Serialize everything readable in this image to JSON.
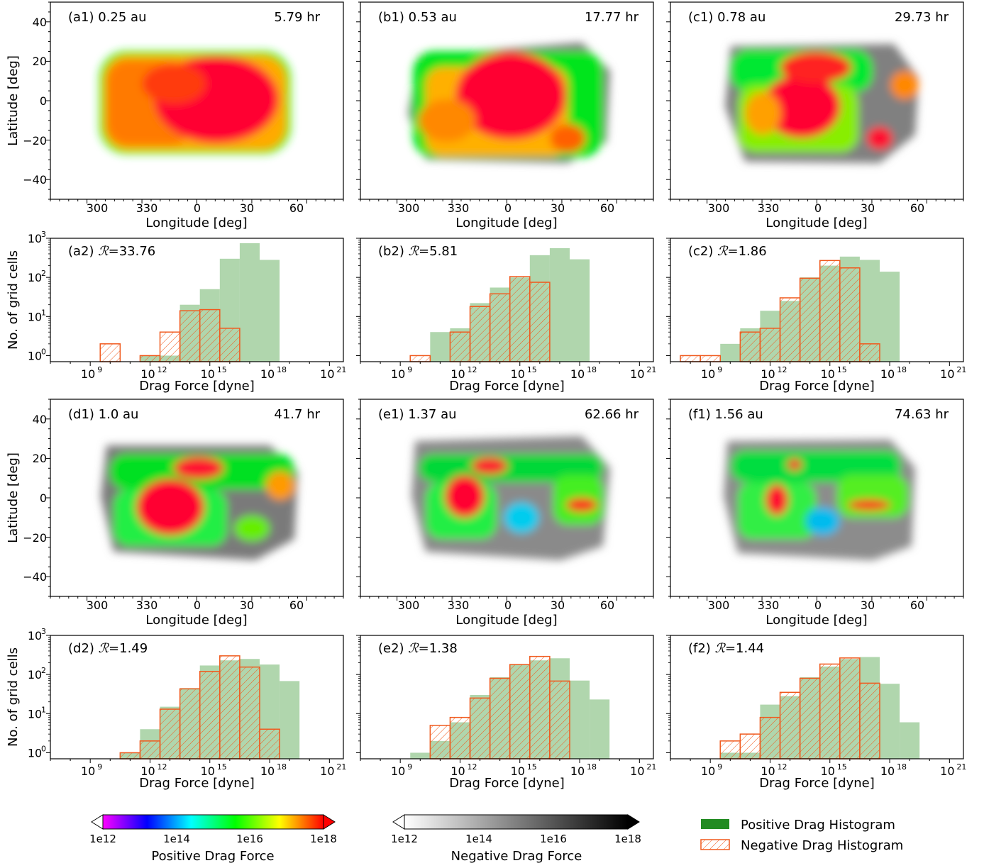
{
  "map_xlabel": "Longitude [deg]",
  "map_ylabel": "Latitude [deg]",
  "hist_xlabel": "Drag Force [dyne]",
  "hist_ylabel": "No. of grid cells",
  "map_xticks": [
    "300",
    "330",
    "0",
    "30",
    "60"
  ],
  "map_yticks": [
    "40",
    "20",
    "0",
    "−20",
    "−40"
  ],
  "hist_xticks": [
    {
      "base": "10",
      "exp": "9"
    },
    {
      "base": "10",
      "exp": "12"
    },
    {
      "base": "10",
      "exp": "15"
    },
    {
      "base": "10",
      "exp": "18"
    },
    {
      "base": "10",
      "exp": "21"
    }
  ],
  "hist_yticks": [
    {
      "base": "10",
      "exp": "0"
    },
    {
      "base": "10",
      "exp": "1"
    },
    {
      "base": "10",
      "exp": "2"
    },
    {
      "base": "10",
      "exp": "3"
    }
  ],
  "colors": {
    "positive_hist": "#9ccc98",
    "positive_legend": "#228b22",
    "negative_hist": "#f05a1e"
  },
  "colorbars": [
    {
      "label": "Positive Drag Force",
      "ticks": [
        "1e12",
        "1e14",
        "1e16",
        "1e18"
      ],
      "colormap": "gist_rainbow_r"
    },
    {
      "label": "Negative Drag Force",
      "ticks": [
        "1e12",
        "1e14",
        "1e16",
        "1e18"
      ],
      "colormap": "gray_r"
    }
  ],
  "legend": {
    "positive": "Positive Drag Histogram",
    "negative": "Negative Drag Histogram"
  },
  "chart_data": [
    {
      "type": "heatmap",
      "panel": "a1",
      "label": "(a1) 0.25 au",
      "time": "5.79 hr",
      "xlabel": "Longitude [deg]",
      "ylabel": "Latitude [deg]",
      "xlim": [
        -80,
        80
      ],
      "ylim": [
        -50,
        50
      ]
    },
    {
      "type": "heatmap",
      "panel": "b1",
      "label": "(b1) 0.53 au",
      "time": "17.77 hr",
      "xlabel": "Longitude [deg]",
      "ylabel": "",
      "xlim": [
        -80,
        80
      ],
      "ylim": [
        -50,
        50
      ]
    },
    {
      "type": "heatmap",
      "panel": "c1",
      "label": "(c1) 0.78 au",
      "time": "29.73 hr",
      "xlabel": "Longitude [deg]",
      "ylabel": "",
      "xlim": [
        -80,
        80
      ],
      "ylim": [
        -50,
        50
      ]
    },
    {
      "type": "bar",
      "panel": "a2",
      "label": "(a2) ",
      "R": "33.76",
      "scale": "log",
      "bin_edges_log10": [
        7.5,
        8.5,
        9.5,
        10.5,
        11.5,
        12.5,
        13.5,
        14.5,
        15.5,
        16.5,
        17.5,
        18.5,
        19.5,
        20.5
      ],
      "series": [
        {
          "name": "Positive Drag Histogram",
          "values": [
            0,
            0,
            0,
            0,
            1,
            1,
            20,
            50,
            300,
            750,
            280,
            0,
            0
          ]
        },
        {
          "name": "Negative Drag Histogram",
          "values": [
            0,
            0,
            2,
            0,
            1,
            4,
            14,
            15,
            5,
            0,
            0,
            0,
            0
          ]
        }
      ],
      "xlabel": "Drag Force [dyne]",
      "ylabel": "No. of grid cells",
      "ylim": [
        0.7,
        1000
      ]
    },
    {
      "type": "bar",
      "panel": "b2",
      "label": "(b2) ",
      "R": "5.81",
      "scale": "log",
      "bin_edges_log10": [
        7.5,
        8.5,
        9.5,
        10.5,
        11.5,
        12.5,
        13.5,
        14.5,
        15.5,
        16.5,
        17.5,
        18.5,
        19.5,
        20.5
      ],
      "series": [
        {
          "name": "Positive Drag Histogram",
          "values": [
            0,
            0,
            0,
            4,
            5,
            22,
            55,
            100,
            370,
            560,
            290,
            0,
            0
          ]
        },
        {
          "name": "Negative Drag Histogram",
          "values": [
            0,
            0,
            1,
            0,
            4,
            18,
            38,
            105,
            75,
            0,
            0,
            0,
            0
          ]
        }
      ],
      "xlabel": "Drag Force [dyne]",
      "ylabel": "",
      "ylim": [
        0.7,
        1000
      ]
    },
    {
      "type": "bar",
      "panel": "c2",
      "label": "(c2) ",
      "R": "1.86",
      "scale": "log",
      "bin_edges_log10": [
        7.5,
        8.5,
        9.5,
        10.5,
        11.5,
        12.5,
        13.5,
        14.5,
        15.5,
        16.5,
        17.5,
        18.5,
        19.5,
        20.5
      ],
      "series": [
        {
          "name": "Positive Drag Histogram",
          "values": [
            0,
            0,
            2,
            5,
            14,
            25,
            100,
            200,
            340,
            280,
            140,
            0,
            0
          ]
        },
        {
          "name": "Negative Drag Histogram",
          "values": [
            1,
            1,
            0,
            4,
            5,
            30,
            95,
            270,
            175,
            2,
            0,
            0,
            0
          ]
        }
      ],
      "xlabel": "Drag Force [dyne]",
      "ylabel": "",
      "ylim": [
        0.7,
        1000
      ]
    },
    {
      "type": "heatmap",
      "panel": "d1",
      "label": "(d1) 1.0 au",
      "time": "41.7 hr",
      "xlabel": "Longitude [deg]",
      "ylabel": "Latitude [deg]",
      "xlim": [
        -80,
        80
      ],
      "ylim": [
        -50,
        50
      ]
    },
    {
      "type": "heatmap",
      "panel": "e1",
      "label": "(e1) 1.37 au",
      "time": "62.66 hr",
      "xlabel": "Longitude [deg]",
      "ylabel": "",
      "xlim": [
        -80,
        80
      ],
      "ylim": [
        -50,
        50
      ]
    },
    {
      "type": "heatmap",
      "panel": "f1",
      "label": "(f1) 1.56 au",
      "time": "74.63 hr",
      "xlabel": "Longitude [deg]",
      "ylabel": "",
      "xlim": [
        -80,
        80
      ],
      "ylim": [
        -50,
        50
      ]
    },
    {
      "type": "bar",
      "panel": "d2",
      "label": "(d2) ",
      "R": "1.49",
      "scale": "log",
      "bin_edges_log10": [
        7.5,
        8.5,
        9.5,
        10.5,
        11.5,
        12.5,
        13.5,
        14.5,
        15.5,
        16.5,
        17.5,
        18.5,
        19.5,
        20.5
      ],
      "series": [
        {
          "name": "Positive Drag Histogram",
          "values": [
            0,
            0,
            0,
            1,
            4,
            15,
            45,
            170,
            230,
            250,
            180,
            68,
            0
          ]
        },
        {
          "name": "Negative Drag Histogram",
          "values": [
            0,
            0,
            0,
            1,
            2,
            13,
            43,
            120,
            300,
            155,
            4,
            0,
            0
          ]
        }
      ],
      "xlabel": "Drag Force [dyne]",
      "ylabel": "No. of grid cells",
      "ylim": [
        0.7,
        1000
      ]
    },
    {
      "type": "bar",
      "panel": "e2",
      "label": "(e2) ",
      "R": "1.38",
      "scale": "log",
      "bin_edges_log10": [
        7.5,
        8.5,
        9.5,
        10.5,
        11.5,
        12.5,
        13.5,
        14.5,
        15.5,
        16.5,
        17.5,
        18.5,
        19.5,
        20.5
      ],
      "series": [
        {
          "name": "Positive Drag Histogram",
          "values": [
            0,
            0,
            1,
            2,
            6,
            30,
            85,
            180,
            230,
            260,
            70,
            23,
            0
          ]
        },
        {
          "name": "Negative Drag Histogram",
          "values": [
            0,
            0,
            0,
            5,
            8,
            25,
            80,
            180,
            290,
            68,
            0,
            0,
            0
          ]
        }
      ],
      "xlabel": "Drag Force [dyne]",
      "ylabel": "",
      "ylim": [
        0.7,
        1000
      ]
    },
    {
      "type": "bar",
      "panel": "f2",
      "label": "(f2) ",
      "R": "1.44",
      "scale": "log",
      "bin_edges_log10": [
        7.5,
        8.5,
        9.5,
        10.5,
        11.5,
        12.5,
        13.5,
        14.5,
        15.5,
        16.5,
        17.5,
        18.5,
        19.5,
        20.5
      ],
      "series": [
        {
          "name": "Positive Drag Histogram",
          "values": [
            0,
            0,
            1,
            1,
            17,
            28,
            85,
            160,
            250,
            280,
            58,
            6,
            0
          ]
        },
        {
          "name": "Negative Drag Histogram",
          "values": [
            0,
            0,
            2,
            3,
            8,
            35,
            80,
            185,
            265,
            60,
            0,
            0,
            0
          ]
        }
      ],
      "xlabel": "Drag Force [dyne]",
      "ylabel": "",
      "ylim": [
        0.7,
        1000
      ]
    }
  ]
}
